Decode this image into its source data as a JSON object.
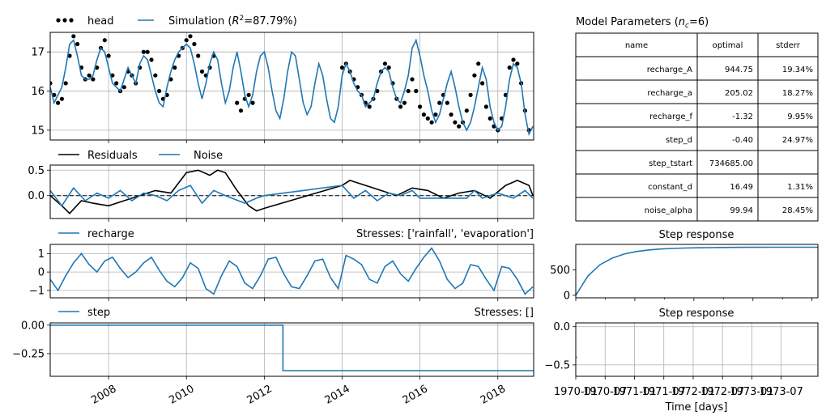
{
  "colors": {
    "simulation": "#1f77b4",
    "head": "#000000",
    "residuals": "#000000",
    "noise": "#1f77b4",
    "grid": "#b0b0b0",
    "zero_line": "#000000"
  },
  "main": {
    "legend": {
      "head": "head",
      "simulation_prefix": "Simulation (",
      "simulation_r2_sym": "R",
      "simulation_r2_sup": "2",
      "simulation_r2_value": "=87.79%)"
    }
  },
  "residuals": {
    "legend": {
      "residuals": "Residuals",
      "noise": "Noise"
    }
  },
  "contributions": [
    {
      "name": "recharge",
      "stresses_label": "Stresses: ['rainfall', 'evaporation']",
      "response_title": "Step response"
    },
    {
      "name": "step",
      "stresses_label": "Stresses: []",
      "response_title": "Step response"
    }
  ],
  "params": {
    "title_prefix": "Model Parameters (",
    "title_sym": "n",
    "title_sub": "c",
    "title_suffix": "=6)",
    "headers": [
      "name",
      "optimal",
      "stderr"
    ],
    "rows": [
      [
        "recharge_A",
        "944.75",
        "19.34%"
      ],
      [
        "recharge_a",
        "205.02",
        "18.27%"
      ],
      [
        "recharge_f",
        "-1.32",
        "9.95%"
      ],
      [
        "step_d",
        "-0.40",
        "24.97%"
      ],
      [
        "step_tstart",
        "734685.00",
        ""
      ],
      [
        "constant_d",
        "16.49",
        "1.31%"
      ],
      [
        "noise_alpha",
        "99.94",
        "28.45%"
      ]
    ]
  },
  "response_xlabel": "Time [days]",
  "chart_data": [
    {
      "type": "line",
      "id": "head-simulation",
      "xlim": [
        2006.5,
        2018.92
      ],
      "ylim": [
        14.75,
        17.5
      ],
      "xticks": [
        2008,
        2010,
        2012,
        2014,
        2016,
        2018
      ],
      "yticks": [
        15,
        16,
        17
      ],
      "grid": true,
      "legend": "top-left-outside",
      "series": [
        {
          "name": "head",
          "style": "dots",
          "segments": [
            {
              "x": [
                2006.5,
                2006.6,
                2006.7,
                2006.8,
                2006.9,
                2007.0,
                2007.1,
                2007.2,
                2007.3,
                2007.4,
                2007.5,
                2007.6,
                2007.7,
                2007.8,
                2007.9,
                2008.0,
                2008.1,
                2008.2,
                2008.3,
                2008.4,
                2008.5,
                2008.6,
                2008.7,
                2008.8,
                2008.9,
                2009.0,
                2009.1,
                2009.2,
                2009.3,
                2009.4,
                2009.5,
                2009.6,
                2009.7,
                2009.8,
                2009.9,
                2010.0,
                2010.1,
                2010.2,
                2010.3,
                2010.4,
                2010.5,
                2010.6,
                2010.7
              ],
              "y": [
                16.2,
                15.9,
                15.7,
                15.8,
                16.2,
                16.9,
                17.4,
                17.2,
                16.6,
                16.3,
                16.4,
                16.3,
                16.6,
                17.1,
                17.3,
                16.9,
                16.4,
                16.2,
                16.0,
                16.1,
                16.5,
                16.4,
                16.2,
                16.6,
                17.0,
                17.0,
                16.8,
                16.4,
                16.0,
                15.8,
                15.9,
                16.3,
                16.6,
                16.9,
                17.1,
                17.3,
                17.4,
                17.2,
                16.9,
                16.5,
                16.4,
                16.6,
                16.9
              ]
            },
            {
              "x": [
                2011.3,
                2011.4,
                2011.5,
                2011.6,
                2011.7
              ],
              "y": [
                15.7,
                15.5,
                15.8,
                15.9,
                15.7
              ]
            },
            {
              "x": [
                2014.0,
                2014.1,
                2014.2,
                2014.3,
                2014.4,
                2014.5,
                2014.6,
                2014.7,
                2014.8,
                2014.9,
                2015.0,
                2015.1,
                2015.2,
                2015.3,
                2015.4,
                2015.5,
                2015.6,
                2015.7,
                2015.8,
                2015.9,
                2016.0,
                2016.1,
                2016.2,
                2016.3,
                2016.4,
                2016.5,
                2016.6,
                2016.7,
                2016.8,
                2016.9,
                2017.0,
                2017.1,
                2017.2,
                2017.3,
                2017.4,
                2017.5,
                2017.6,
                2017.7,
                2017.8,
                2017.9,
                2018.0,
                2018.1,
                2018.2,
                2018.3,
                2018.4,
                2018.5,
                2018.6,
                2018.7,
                2018.8
              ],
              "y": [
                16.6,
                16.7,
                16.5,
                16.3,
                16.1,
                15.9,
                15.7,
                15.6,
                15.8,
                16.0,
                16.5,
                16.7,
                16.6,
                16.2,
                15.8,
                15.6,
                15.7,
                16.0,
                16.3,
                16.0,
                15.6,
                15.4,
                15.3,
                15.2,
                15.4,
                15.7,
                15.9,
                15.7,
                15.4,
                15.2,
                15.1,
                15.2,
                15.5,
                15.9,
                16.4,
                16.7,
                16.2,
                15.6,
                15.3,
                15.1,
                15.0,
                15.3,
                15.9,
                16.6,
                16.8,
                16.7,
                16.2,
                15.5,
                15.0
              ]
            }
          ]
        },
        {
          "name": "simulation",
          "style": "line",
          "x": [
            2006.5,
            2006.6,
            2006.7,
            2006.8,
            2006.9,
            2007.0,
            2007.1,
            2007.2,
            2007.3,
            2007.4,
            2007.5,
            2007.6,
            2007.7,
            2007.8,
            2007.9,
            2008.0,
            2008.1,
            2008.2,
            2008.3,
            2008.4,
            2008.5,
            2008.6,
            2008.7,
            2008.8,
            2008.9,
            2009.0,
            2009.1,
            2009.2,
            2009.3,
            2009.4,
            2009.5,
            2009.6,
            2009.7,
            2009.8,
            2009.9,
            2010.0,
            2010.1,
            2010.2,
            2010.3,
            2010.4,
            2010.5,
            2010.6,
            2010.7,
            2010.8,
            2010.9,
            2011.0,
            2011.1,
            2011.2,
            2011.3,
            2011.4,
            2011.5,
            2011.6,
            2011.7,
            2011.8,
            2011.9,
            2012.0,
            2012.1,
            2012.2,
            2012.3,
            2012.4,
            2012.5,
            2012.6,
            2012.7,
            2012.8,
            2012.9,
            2013.0,
            2013.1,
            2013.2,
            2013.3,
            2013.4,
            2013.5,
            2013.6,
            2013.7,
            2013.8,
            2013.9,
            2014.0,
            2014.1,
            2014.2,
            2014.3,
            2014.4,
            2014.5,
            2014.6,
            2014.7,
            2014.8,
            2014.9,
            2015.0,
            2015.1,
            2015.2,
            2015.3,
            2015.4,
            2015.5,
            2015.6,
            2015.7,
            2015.8,
            2015.9,
            2016.0,
            2016.1,
            2016.2,
            2016.3,
            2016.4,
            2016.5,
            2016.6,
            2016.7,
            2016.8,
            2016.9,
            2017.0,
            2017.1,
            2017.2,
            2017.3,
            2017.4,
            2017.5,
            2017.6,
            2017.7,
            2017.8,
            2017.9,
            2018.0,
            2018.1,
            2018.2,
            2018.3,
            2018.4,
            2018.5,
            2018.6,
            2018.7,
            2018.8,
            2018.9
          ],
          "y": [
            16.1,
            15.7,
            15.9,
            16.1,
            16.6,
            17.2,
            17.3,
            16.9,
            16.4,
            16.3,
            16.3,
            16.4,
            16.8,
            17.1,
            17.0,
            16.6,
            16.2,
            16.1,
            16.0,
            16.3,
            16.6,
            16.4,
            16.2,
            16.7,
            16.9,
            16.8,
            16.4,
            16.0,
            15.7,
            15.6,
            16.1,
            16.5,
            16.8,
            17.0,
            17.1,
            17.2,
            17.1,
            16.7,
            16.2,
            15.8,
            16.2,
            16.7,
            17.0,
            16.8,
            16.2,
            15.7,
            16.0,
            16.6,
            17.0,
            16.5,
            15.9,
            15.6,
            15.9,
            16.5,
            16.9,
            17.0,
            16.6,
            16.0,
            15.5,
            15.3,
            15.8,
            16.5,
            17.0,
            16.9,
            16.3,
            15.7,
            15.4,
            15.6,
            16.2,
            16.7,
            16.4,
            15.8,
            15.3,
            15.2,
            15.6,
            16.4,
            16.7,
            16.5,
            16.2,
            16.0,
            15.9,
            15.6,
            15.7,
            15.8,
            16.2,
            16.5,
            16.6,
            16.5,
            16.1,
            15.8,
            15.7,
            16.0,
            16.4,
            17.1,
            17.3,
            16.9,
            16.4,
            16.0,
            15.5,
            15.2,
            15.4,
            15.8,
            16.2,
            16.5,
            16.1,
            15.6,
            15.2,
            15.0,
            15.2,
            15.6,
            16.1,
            16.6,
            16.3,
            15.6,
            15.2,
            15.0,
            15.1,
            15.6,
            16.3,
            16.7,
            16.6,
            16.2,
            15.4,
            14.9,
            15.1
          ]
        }
      ]
    },
    {
      "type": "line",
      "id": "residuals-noise",
      "xlim": [
        2006.5,
        2018.92
      ],
      "ylim": [
        -0.45,
        0.6
      ],
      "yticks": [
        0.0,
        0.5
      ],
      "grid": true,
      "legend": "top-left-outside",
      "series": [
        {
          "name": "residuals",
          "x": [
            2006.5,
            2006.8,
            2007.0,
            2007.3,
            2007.6,
            2008.0,
            2008.4,
            2008.8,
            2009.2,
            2009.6,
            2010.0,
            2010.3,
            2010.6,
            2010.8,
            2011.0,
            2011.3,
            2011.6,
            2011.8,
            2012.0,
            2014.0,
            2014.2,
            2014.6,
            2015.0,
            2015.4,
            2015.8,
            2016.2,
            2016.6,
            2017.0,
            2017.4,
            2017.8,
            2018.2,
            2018.5,
            2018.8,
            2018.9
          ],
          "y": [
            0.0,
            -0.2,
            -0.35,
            -0.1,
            -0.15,
            -0.2,
            -0.1,
            0.0,
            0.1,
            0.05,
            0.45,
            0.5,
            0.4,
            0.5,
            0.45,
            0.1,
            -0.2,
            -0.3,
            -0.25,
            0.2,
            0.3,
            0.2,
            0.1,
            0.0,
            0.15,
            0.1,
            -0.05,
            0.05,
            0.1,
            -0.05,
            0.2,
            0.3,
            0.2,
            0.0
          ]
        },
        {
          "name": "noise",
          "x": [
            2006.5,
            2006.8,
            2007.1,
            2007.4,
            2007.7,
            2008.0,
            2008.3,
            2008.6,
            2008.9,
            2009.2,
            2009.5,
            2009.8,
            2010.1,
            2010.4,
            2010.7,
            2011.0,
            2011.5,
            2011.8,
            2012.0,
            2014.0,
            2014.3,
            2014.6,
            2014.9,
            2015.2,
            2015.5,
            2015.8,
            2016.0,
            2017.2,
            2017.4,
            2017.6,
            2018.0,
            2018.4,
            2018.7,
            2018.9
          ],
          "y": [
            0.1,
            -0.2,
            0.15,
            -0.1,
            0.05,
            -0.05,
            0.1,
            -0.1,
            0.05,
            0.0,
            -0.1,
            0.1,
            0.2,
            -0.15,
            0.1,
            0.0,
            -0.15,
            -0.05,
            0.0,
            0.2,
            -0.05,
            0.1,
            -0.1,
            0.05,
            0.0,
            0.1,
            -0.05,
            -0.05,
            0.1,
            -0.05,
            0.05,
            -0.05,
            0.1,
            -0.05
          ]
        }
      ]
    },
    {
      "type": "line",
      "id": "recharge-contribution",
      "xlim": [
        2006.5,
        2018.92
      ],
      "ylim": [
        -1.4,
        1.5
      ],
      "yticks": [
        -1,
        0,
        1
      ],
      "grid": true,
      "legend": "top-left-outside",
      "series": [
        {
          "name": "recharge",
          "x": [
            2006.5,
            2006.7,
            2006.9,
            2007.1,
            2007.3,
            2007.5,
            2007.7,
            2007.9,
            2008.1,
            2008.3,
            2008.5,
            2008.7,
            2008.9,
            2009.1,
            2009.3,
            2009.5,
            2009.7,
            2009.9,
            2010.1,
            2010.3,
            2010.5,
            2010.7,
            2010.9,
            2011.1,
            2011.3,
            2011.5,
            2011.7,
            2011.9,
            2012.1,
            2012.3,
            2012.5,
            2012.7,
            2012.9,
            2013.1,
            2013.3,
            2013.5,
            2013.7,
            2013.9,
            2014.1,
            2014.3,
            2014.5,
            2014.7,
            2014.9,
            2015.1,
            2015.3,
            2015.5,
            2015.7,
            2015.9,
            2016.1,
            2016.3,
            2016.5,
            2016.7,
            2016.9,
            2017.1,
            2017.3,
            2017.5,
            2017.7,
            2017.9,
            2018.1,
            2018.3,
            2018.5,
            2018.7,
            2018.9
          ],
          "y": [
            -0.4,
            -1.0,
            -0.2,
            0.5,
            1.0,
            0.4,
            0.0,
            0.6,
            0.8,
            0.2,
            -0.3,
            0.0,
            0.5,
            0.8,
            0.1,
            -0.5,
            -0.8,
            -0.3,
            0.5,
            0.2,
            -0.9,
            -1.2,
            -0.2,
            0.6,
            0.3,
            -0.6,
            -0.9,
            -0.2,
            0.7,
            0.8,
            -0.1,
            -0.8,
            -0.9,
            -0.2,
            0.6,
            0.7,
            -0.3,
            -0.9,
            0.9,
            0.7,
            0.4,
            -0.4,
            -0.6,
            0.3,
            0.6,
            -0.1,
            -0.5,
            0.2,
            0.8,
            1.3,
            0.6,
            -0.4,
            -0.9,
            -0.6,
            0.4,
            0.3,
            -0.4,
            -1.0,
            0.3,
            0.2,
            -0.4,
            -1.2,
            -0.8
          ]
        }
      ]
    },
    {
      "type": "line",
      "id": "recharge-step-response",
      "ylim": [
        -50,
        1000
      ],
      "yticks": [
        0,
        500
      ],
      "grid": false,
      "series": [
        {
          "name": "recharge step response",
          "x": [
            0,
            1,
            2,
            3,
            4,
            5,
            6,
            7,
            8,
            9,
            10,
            11,
            12,
            13,
            14,
            15,
            16,
            17,
            18,
            19,
            20
          ],
          "y": [
            0,
            380,
            600,
            730,
            810,
            860,
            890,
            910,
            920,
            928,
            933,
            937,
            939,
            941,
            942,
            943,
            944,
            944,
            944.5,
            944.7,
            944.75
          ]
        }
      ]
    },
    {
      "type": "line",
      "id": "step-contribution",
      "xlim": [
        2006.5,
        2018.92
      ],
      "ylim": [
        -0.45,
        0.02
      ],
      "yticks": [
        0.0,
        -0.25
      ],
      "ytick_labels": [
        "0.00",
        "−0.25"
      ],
      "grid": true,
      "legend": "top-left-outside",
      "series": [
        {
          "name": "step",
          "x": [
            2006.5,
            2012.48,
            2012.48,
            2018.92
          ],
          "y": [
            0.0,
            0.0,
            -0.4,
            -0.4
          ]
        }
      ]
    },
    {
      "type": "line",
      "id": "step-step-response",
      "ylim": [
        -0.65,
        0.05
      ],
      "yticks": [
        0.0,
        -0.5
      ],
      "ytick_labels": [
        "0.0",
        "−0.5"
      ],
      "xtick_labels": [
        "1970-01",
        "1970-07",
        "1971-01",
        "1971-07",
        "1972-01",
        "1972-07",
        "1973-01",
        "1973-07"
      ],
      "xlabel": "Time [days]",
      "grid": true,
      "series": [
        {
          "name": "step step response",
          "x": [
            0,
            0.01
          ],
          "y": [
            -0.4,
            -0.4
          ]
        }
      ]
    }
  ]
}
